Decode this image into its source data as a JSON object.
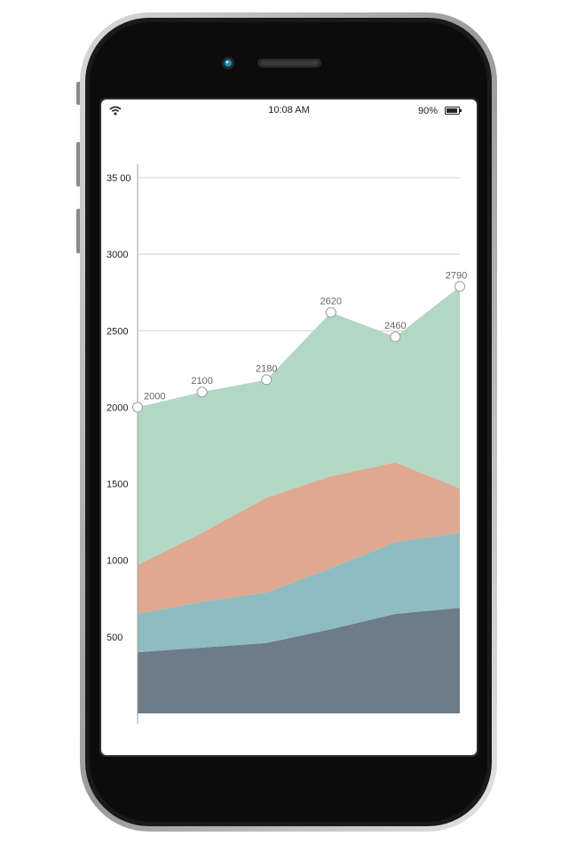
{
  "status_bar": {
    "time": "10:08 AM",
    "battery": "90%"
  },
  "colors": {
    "series1": "#6e7c87",
    "series2": "#8fbcc1",
    "series3": "#e0a890",
    "series4": "#b2d8c4",
    "grid": "#cfcfcf",
    "axis": "#a0a0a0",
    "marker_stroke": "#9a9a9a"
  },
  "icons": [
    "wifi-icon",
    "battery-icon",
    "camera-icon",
    "speaker-icon"
  ],
  "chart_data": {
    "type": "area",
    "stacked": true,
    "x": [
      0,
      1,
      2,
      3,
      4,
      5
    ],
    "ylim": [
      0,
      3500
    ],
    "yticks": [
      {
        "value": 500,
        "label": "500"
      },
      {
        "value": 1000,
        "label": "1000"
      },
      {
        "value": 1500,
        "label": "1500"
      },
      {
        "value": 2000,
        "label": "2000"
      },
      {
        "value": 2500,
        "label": "2500"
      },
      {
        "value": 3000,
        "label": "3000"
      },
      {
        "value": 3500,
        "label": "35 00"
      }
    ],
    "series": [
      {
        "values": [
          400,
          430,
          460,
          550,
          650,
          690
        ]
      },
      {
        "values": [
          250,
          300,
          330,
          400,
          470,
          490
        ]
      },
      {
        "values": [
          320,
          450,
          620,
          600,
          520,
          290
        ]
      },
      {
        "values": [
          1030,
          920,
          770,
          1070,
          820,
          1320
        ]
      }
    ],
    "labels": [
      "2000",
      "2100",
      "2180",
      "2620",
      "2460",
      "2790"
    ]
  }
}
